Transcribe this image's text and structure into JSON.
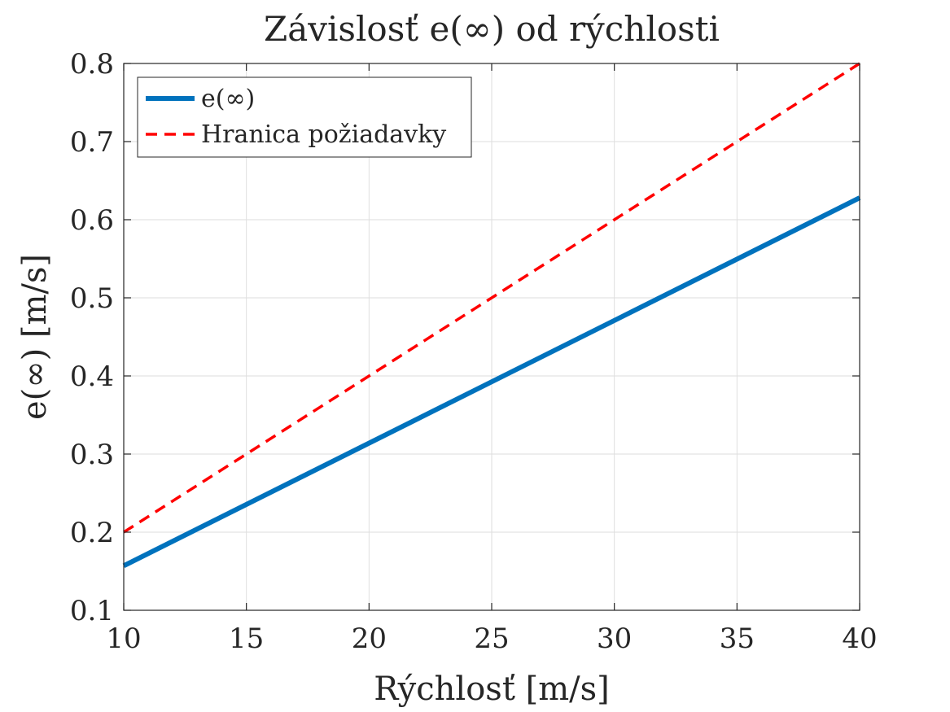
{
  "chart_data": {
    "type": "line",
    "title": "Závislosť e(∞) od rýchlosti",
    "xlabel": "Rýchlosť [m/s]",
    "ylabel": "e(∞) [m/s]",
    "xlim": [
      10,
      40
    ],
    "ylim": [
      0.1,
      0.8
    ],
    "xticks": [
      10,
      15,
      20,
      25,
      30,
      35,
      40
    ],
    "yticks": [
      0.1,
      0.2,
      0.3,
      0.4,
      0.5,
      0.6,
      0.7,
      0.8
    ],
    "xtick_labels": [
      "10",
      "15",
      "20",
      "25",
      "30",
      "35",
      "40"
    ],
    "ytick_labels": [
      "0.1",
      "0.2",
      "0.3",
      "0.4",
      "0.5",
      "0.6",
      "0.7",
      "0.8"
    ],
    "grid": true,
    "legend_position": "top-left",
    "series": [
      {
        "name": "e(∞)",
        "style": "solid",
        "color": "#0072BD",
        "x": [
          10,
          40
        ],
        "y": [
          0.157,
          0.628
        ]
      },
      {
        "name": "Hranica požiadavky",
        "style": "dashed",
        "color": "#FF0000",
        "x": [
          10,
          40
        ],
        "y": [
          0.2,
          0.8
        ]
      }
    ]
  }
}
